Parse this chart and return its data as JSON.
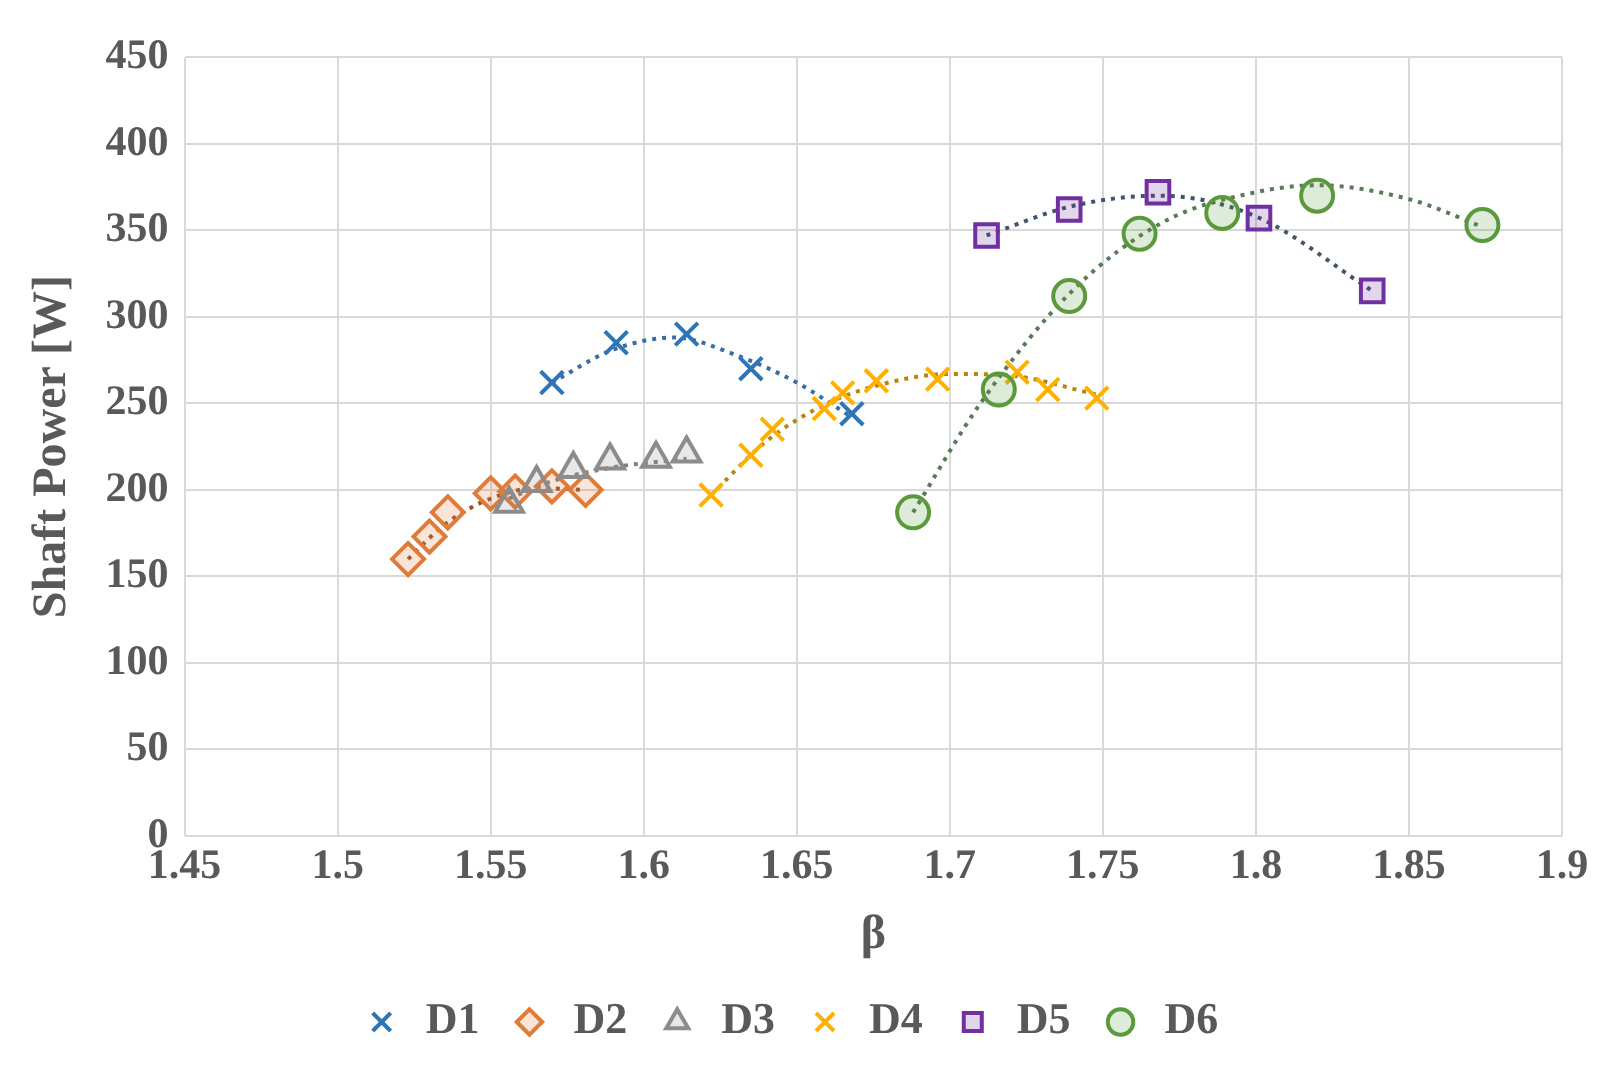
{
  "chart_data": {
    "type": "scatter",
    "xlabel": "β",
    "ylabel": "Shaft Power [W]",
    "xlim": [
      1.45,
      1.9
    ],
    "xticks": [
      1.45,
      1.5,
      1.55,
      1.6,
      1.65,
      1.7,
      1.75,
      1.8,
      1.85,
      1.9
    ],
    "ylim": [
      0,
      450
    ],
    "yticks": [
      0,
      50,
      100,
      150,
      200,
      250,
      300,
      350,
      400,
      450
    ],
    "grid": true,
    "legend": "bottom",
    "series": [
      {
        "name": "D1",
        "color": "#2e75b6",
        "marker": "cross",
        "x": [
          1.57,
          1.591,
          1.614,
          1.635,
          1.668
        ],
        "values": [
          262,
          285,
          290,
          270,
          244
        ]
      },
      {
        "name": "D2",
        "color": "#e07b39",
        "marker": "diamond",
        "x": [
          1.523,
          1.53,
          1.536,
          1.55,
          1.558,
          1.57,
          1.581
        ],
        "values": [
          160,
          173,
          187,
          198,
          199,
          202,
          200
        ]
      },
      {
        "name": "D3",
        "color": "#8c8c8c",
        "marker": "triangle",
        "x": [
          1.556,
          1.565,
          1.577,
          1.589,
          1.604,
          1.614
        ],
        "values": [
          192,
          204,
          212,
          217,
          218,
          221
        ]
      },
      {
        "name": "D4",
        "color": "#ffb000",
        "marker": "cross",
        "x": [
          1.622,
          1.635,
          1.642,
          1.659,
          1.665,
          1.676,
          1.696,
          1.722,
          1.732,
          1.748
        ],
        "values": [
          197,
          220,
          235,
          247,
          256,
          263,
          264,
          268,
          258,
          253
        ]
      },
      {
        "name": "D5",
        "color": "#7030a0",
        "marker": "square",
        "x": [
          1.712,
          1.739,
          1.768,
          1.801,
          1.838
        ],
        "values": [
          347,
          362,
          372,
          357,
          315
        ]
      },
      {
        "name": "D6",
        "color": "#5b9a3c",
        "marker": "circle",
        "x": [
          1.688,
          1.716,
          1.739,
          1.762,
          1.789,
          1.82,
          1.874
        ],
        "values": [
          187,
          258,
          312,
          348,
          360,
          370,
          353
        ]
      },
      {
        "type": "line",
        "color": "#3a6ea5",
        "marker": "none",
        "line_style": "dotted",
        "x": [
          1.57,
          1.59,
          1.61,
          1.63,
          1.65,
          1.668
        ],
        "values": [
          262,
          281,
          288,
          278,
          262,
          242
        ]
      },
      {
        "type": "line",
        "color": "#a0522d",
        "marker": "none",
        "line_style": "dotted",
        "x": [
          1.523,
          1.535,
          1.55,
          1.565,
          1.581
        ],
        "values": [
          160,
          180,
          195,
          201,
          200
        ]
      },
      {
        "type": "line",
        "color": "#808080",
        "marker": "none",
        "line_style": "dotted",
        "x": [
          1.556,
          1.57,
          1.59,
          1.614
        ],
        "values": [
          195,
          205,
          213,
          218
        ]
      },
      {
        "type": "line",
        "color": "#b8860b",
        "marker": "none",
        "line_style": "dotted",
        "x": [
          1.622,
          1.64,
          1.66,
          1.68,
          1.7,
          1.72,
          1.748
        ],
        "values": [
          197,
          228,
          250,
          262,
          267,
          266,
          255
        ]
      },
      {
        "type": "line",
        "color": "#44546a",
        "marker": "none",
        "line_style": "dotted",
        "x": [
          1.712,
          1.74,
          1.768,
          1.8,
          1.838
        ],
        "values": [
          347,
          364,
          370,
          358,
          315
        ]
      },
      {
        "type": "line",
        "color": "#5a7a5a",
        "marker": "none",
        "line_style": "dotted",
        "x": [
          1.688,
          1.71,
          1.74,
          1.77,
          1.8,
          1.82,
          1.85,
          1.874
        ],
        "values": [
          187,
          250,
          315,
          355,
          372,
          376,
          368,
          352
        ]
      }
    ]
  }
}
